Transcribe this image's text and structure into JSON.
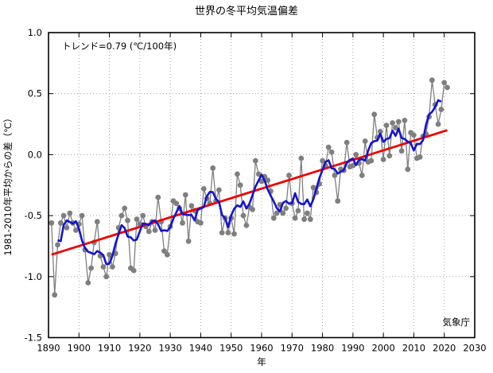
{
  "title": "世界の冬平均気温偏差",
  "annotations": {
    "trend_label": "トレンド=0.79 (℃/100年)",
    "source_label": "気象庁"
  },
  "chart_data": {
    "type": "line",
    "title": "世界の冬平均気温偏差",
    "xlabel": "年",
    "ylabel": "1981-2010年平均からの差（℃）",
    "xlim": [
      1890,
      2030
    ],
    "ylim": [
      -1.5,
      1.0
    ],
    "x_ticks": [
      1890,
      1900,
      1910,
      1920,
      1930,
      1940,
      1950,
      1960,
      1970,
      1980,
      1990,
      2000,
      2010,
      2020,
      2030
    ],
    "y_ticks": [
      1.0,
      0.5,
      0.0,
      -0.5,
      -1.0,
      -1.5
    ],
    "y_tick_labels": [
      "1.0",
      "0.5",
      "0.0",
      "-0.5",
      "-1.0",
      "-1.5"
    ],
    "grid": "dotted",
    "legend_position": "none",
    "colors": {
      "annual": "#7f7f7f",
      "five_year_mean": "#1414cc",
      "trend": "#ee0000",
      "grid": "#9a9a9a",
      "frame": "#000000"
    },
    "series": [
      {
        "name": "annual_anomaly",
        "style": "line+markers",
        "x_start": 1891,
        "x_end": 2021,
        "values": [
          -0.56,
          -1.15,
          -0.74,
          -0.56,
          -0.5,
          -0.6,
          -0.48,
          -0.56,
          -0.62,
          -0.57,
          -0.5,
          -0.78,
          -1.05,
          -0.93,
          -0.72,
          -0.55,
          -0.83,
          -0.92,
          -1.0,
          -0.82,
          -0.92,
          -0.81,
          -0.6,
          -0.5,
          -0.44,
          -0.54,
          -0.93,
          -0.95,
          -0.53,
          -0.57,
          -0.5,
          -0.59,
          -0.63,
          -0.55,
          -0.62,
          -0.35,
          -0.55,
          -0.79,
          -0.82,
          -0.59,
          -0.38,
          -0.4,
          -0.44,
          -0.56,
          -0.33,
          -0.71,
          -0.42,
          -0.46,
          -0.55,
          -0.56,
          -0.28,
          -0.36,
          -0.4,
          -0.11,
          -0.38,
          -0.29,
          -0.64,
          -0.52,
          -0.64,
          -0.52,
          -0.65,
          -0.16,
          -0.25,
          -0.5,
          -0.58,
          -0.43,
          -0.45,
          -0.05,
          -0.16,
          -0.22,
          -0.18,
          -0.21,
          -0.3,
          -0.52,
          -0.48,
          -0.41,
          -0.48,
          -0.44,
          -0.17,
          -0.4,
          -0.52,
          -0.46,
          -0.03,
          -0.53,
          -0.48,
          -0.53,
          -0.27,
          -0.31,
          -0.24,
          -0.05,
          -0.09,
          0.06,
          0.02,
          -0.17,
          -0.38,
          -0.12,
          -0.13,
          0.1,
          -0.1,
          -0.09,
          0.0,
          -0.07,
          -0.17,
          0.11,
          -0.06,
          -0.05,
          0.33,
          0.14,
          0.19,
          -0.04,
          0.24,
          -0.01,
          0.26,
          0.22,
          0.27,
          0.03,
          0.28,
          -0.12,
          0.18,
          0.16,
          -0.03,
          -0.02,
          0.15,
          0.17,
          0.31,
          0.61,
          0.41,
          0.25,
          0.37,
          0.59,
          0.55
        ]
      },
      {
        "name": "five_year_running_mean",
        "style": "line",
        "derived": "centered 5-year mean of annual_anomaly"
      },
      {
        "name": "linear_trend",
        "style": "line",
        "slope_per_100yr": 0.79,
        "x": [
          1891,
          2021
        ],
        "y": [
          -0.82,
          0.2
        ]
      }
    ]
  }
}
